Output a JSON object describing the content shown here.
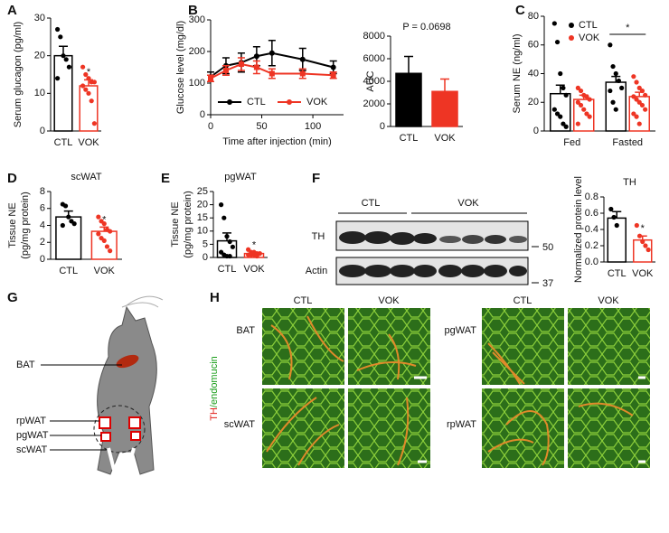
{
  "chart_data": [
    {
      "type": "bar",
      "ylabel": "Serum glucagon (pg/ml)",
      "categories": [
        "CTL",
        "VOK"
      ],
      "colors": [
        "#000000",
        "#ee3524"
      ],
      "values": [
        20,
        12
      ],
      "errors": [
        2.5,
        1.6
      ],
      "points": [
        [
          27,
          25,
          20,
          19,
          17,
          14
        ],
        [
          17,
          15,
          14,
          13,
          13,
          12,
          11,
          10,
          8,
          2
        ]
      ],
      "ylim": [
        0,
        30
      ],
      "yticks": [
        0,
        10,
        20,
        30
      ],
      "annotation": "*"
    },
    {
      "type": "line",
      "ylabel": "Glucose level (mg/dl)",
      "xlabel": "Time after injection (min)",
      "x": [
        0,
        15,
        30,
        45,
        60,
        90,
        120
      ],
      "series": [
        {
          "name": "CTL",
          "color": "#000000",
          "values": [
            120,
            155,
            165,
            185,
            195,
            175,
            150
          ],
          "errors": [
            15,
            25,
            30,
            30,
            40,
            35,
            20
          ]
        },
        {
          "name": "VOK",
          "color": "#ee3524",
          "values": [
            115,
            140,
            160,
            150,
            130,
            130,
            125
          ],
          "errors": [
            10,
            15,
            20,
            20,
            15,
            15,
            10
          ]
        }
      ],
      "xlim": [
        0,
        130
      ],
      "xticks": [
        0,
        50,
        100
      ],
      "ylim": [
        0,
        300
      ],
      "yticks": [
        0,
        100,
        200,
        300
      ]
    },
    {
      "type": "bar",
      "filled": true,
      "ylabel": "AUC",
      "categories": [
        "CTL",
        "VOK"
      ],
      "colors": [
        "#000000",
        "#ee3524"
      ],
      "values": [
        4700,
        3100
      ],
      "errors": [
        1500,
        1100
      ],
      "ylim": [
        0,
        8000
      ],
      "yticks": [
        0,
        2000,
        4000,
        6000,
        8000
      ],
      "annotation": "P = 0.0698"
    },
    {
      "type": "grouped-bar",
      "ylabel": "Serum NE (ng/ml)",
      "categories": [
        "Fed",
        "Fasted"
      ],
      "series": [
        {
          "name": "CTL",
          "color": "#000000",
          "values": [
            26,
            34
          ],
          "errors": [
            6,
            4
          ],
          "points": [
            [
              75,
              62,
              40,
              30,
              25,
              15,
              12,
              10,
              5,
              3
            ],
            [
              60,
              45,
              40,
              35,
              30,
              28,
              20,
              15
            ]
          ]
        },
        {
          "name": "VOK",
          "color": "#ee3524",
          "values": [
            22,
            24
          ],
          "errors": [
            3,
            3
          ],
          "points": [
            [
              30,
              28,
              25,
              24,
              22,
              20,
              18,
              15,
              12,
              10,
              5
            ],
            [
              38,
              34,
              30,
              28,
              25,
              24,
              22,
              20,
              18,
              15,
              12,
              10,
              5
            ]
          ]
        }
      ],
      "ylim": [
        0,
        80
      ],
      "yticks": [
        0,
        20,
        40,
        60,
        80
      ],
      "annotation": "*"
    },
    {
      "type": "bar",
      "title": "scWAT",
      "ylabel": [
        "Tissue NE",
        "(pg/mg protein)"
      ],
      "categories": [
        "CTL",
        "VOK"
      ],
      "colors": [
        "#000000",
        "#ee3524"
      ],
      "values": [
        5.0,
        3.3
      ],
      "errors": [
        0.7,
        0.5
      ],
      "points": [
        [
          6.5,
          6.3,
          5.0,
          4.5,
          4.2,
          4.0
        ],
        [
          5.0,
          4.5,
          4.2,
          3.5,
          3.3,
          3.0,
          2.5,
          2.2,
          1.5,
          1.0
        ]
      ],
      "ylim": [
        0,
        8
      ],
      "yticks": [
        0,
        2,
        4,
        6,
        8
      ],
      "annotation": "*"
    },
    {
      "type": "bar",
      "title": "pgWAT",
      "ylabel": [
        "Tissue NE",
        "(pg/mg protein)"
      ],
      "categories": [
        "CTL",
        "VOK"
      ],
      "colors": [
        "#000000",
        "#ee3524"
      ],
      "values": [
        6.3,
        1.5
      ],
      "errors": [
        3,
        0.3
      ],
      "points": [
        [
          20,
          15,
          8,
          6,
          4,
          2,
          1,
          0.5,
          0.5
        ],
        [
          3,
          2,
          2,
          1.5,
          1.5,
          1,
          1,
          1,
          0.5
        ]
      ],
      "ylim": [
        0,
        25
      ],
      "yticks": [
        0,
        5,
        10,
        15,
        20,
        25
      ],
      "annotation": "*"
    },
    {
      "type": "bar",
      "title": "TH",
      "ylabel": "Normalized protein level",
      "categories": [
        "CTL",
        "VOK"
      ],
      "colors": [
        "#000000",
        "#ee3524"
      ],
      "values": [
        0.54,
        0.27
      ],
      "errors": [
        0.08,
        0.05
      ],
      "points": [
        [
          0.65,
          0.55,
          0.45
        ],
        [
          0.45,
          0.32,
          0.25,
          0.2,
          0.15
        ]
      ],
      "ylim": [
        0,
        0.8
      ],
      "yticks": [
        {
          "value": 0,
          "label": "0.0"
        },
        0.2,
        0.4,
        0.6,
        0.8
      ],
      "annotation": "*"
    }
  ],
  "panel_labels": [
    "A",
    "B",
    "C",
    "D",
    "E",
    "F",
    "G",
    "H"
  ],
  "blot": {
    "groups": [
      "CTL",
      "VOK"
    ],
    "rows": [
      "TH",
      "Actin"
    ],
    "markers": [
      50,
      37
    ]
  },
  "diagram": {
    "labels": [
      "BAT",
      "rpWAT",
      "pgWAT",
      "scWAT"
    ]
  },
  "micrographs": {
    "columns": [
      "CTL",
      "VOK",
      "CTL",
      "VOK"
    ],
    "rows": [
      "BAT",
      "scWAT",
      "pgWAT",
      "rpWAT"
    ],
    "stain": [
      "TH",
      "/endomucin"
    ]
  }
}
